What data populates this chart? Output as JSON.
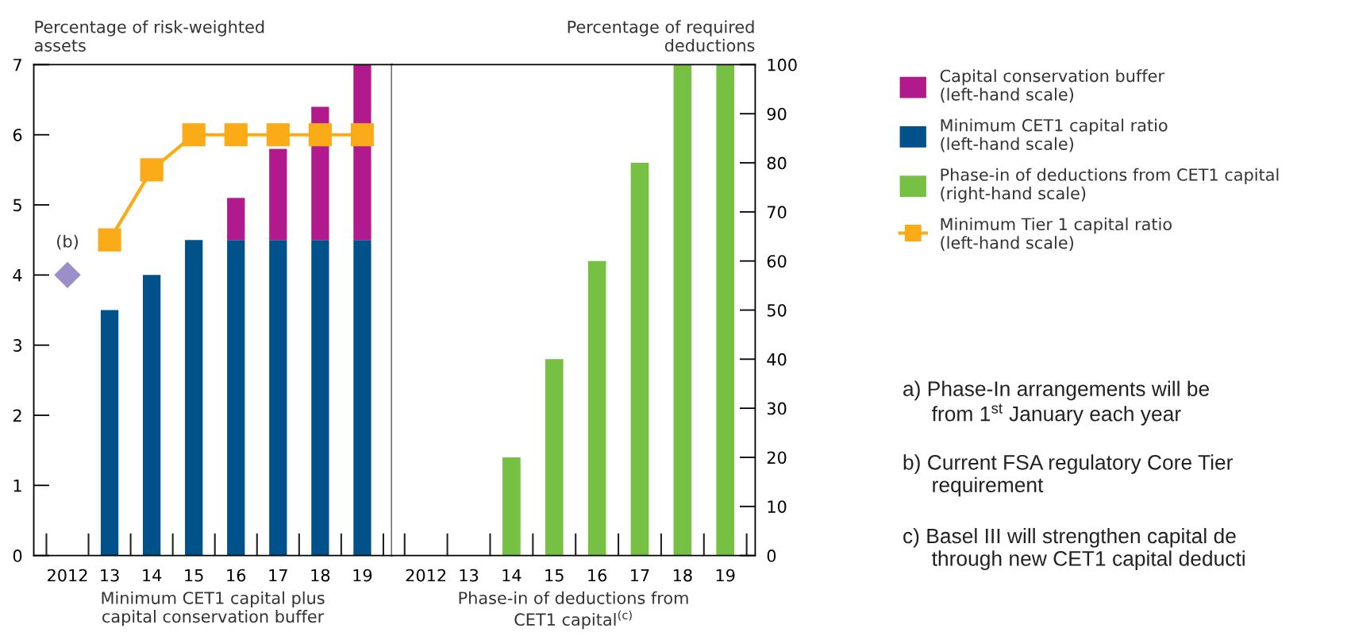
{
  "chart_data": [
    {
      "type": "bar",
      "stacked": true,
      "xlabel": "Minimum CET1 capital plus\ncapital conservation buffer",
      "ylabel": "Percentage of risk-weighted\nassets",
      "categories": [
        "2012",
        "13",
        "14",
        "15",
        "16",
        "17",
        "18",
        "19"
      ],
      "ylim": [
        0,
        7
      ],
      "yticks": [
        0,
        1,
        2,
        3,
        4,
        5,
        6,
        7
      ],
      "grid": false,
      "legend": "right",
      "series": [
        {
          "name": "Minimum CET1 capital ratio\n(left-hand scale)",
          "color": "#01528a",
          "values": [
            null,
            3.5,
            4.0,
            4.5,
            4.5,
            4.5,
            4.5,
            4.5
          ]
        },
        {
          "name": "Capital conservation buffer\n(left-hand scale)",
          "color": "#b01a8c",
          "values": [
            null,
            0,
            0,
            0,
            0.6,
            1.3,
            1.9,
            2.5
          ]
        },
        {
          "name": "Minimum Tier 1 capital ratio\n(left-hand scale)",
          "type": "line",
          "color": "#fbab18",
          "marker": "square",
          "line_style": "solid",
          "values": [
            null,
            4.5,
            5.5,
            6,
            6,
            6,
            6,
            6
          ]
        },
        {
          "type": "scatter",
          "color": "#9b8ec9",
          "marker": "diamond",
          "values": [
            4,
            null,
            null,
            null,
            null,
            null,
            null,
            null
          ]
        }
      ],
      "annotations": [
        {
          "text": "(b)",
          "x": "2012",
          "y": 4
        }
      ]
    },
    {
      "type": "bar",
      "xlabel": "Phase-in of deductions from\nCET1 capital$^{(c)}$",
      "ylabel": "Percentage of required\ndeductions",
      "categories": [
        "2012",
        "13",
        "14",
        "15",
        "16",
        "17",
        "18",
        "19"
      ],
      "ylim": [
        0,
        100
      ],
      "yticks": [
        0,
        10,
        20,
        30,
        40,
        50,
        60,
        70,
        80,
        90,
        100
      ],
      "grid": false,
      "legend": "right",
      "series": [
        {
          "name": "Phase-in of deductions from CET1 capital\n(right-hand scale)",
          "color": "#76c043",
          "values": [
            null,
            null,
            20,
            40,
            60,
            80,
            100,
            100
          ]
        }
      ],
      "annotations": [
        "a) Phase-In arrangements will be\n     from 1$^{st}$ January each year",
        "b) Current FSA regulatory Core Tier\n     requirement",
        "c) Basel III will strengthen capital de\n     through new CET1 capital deducti"
      ]
    }
  ]
}
